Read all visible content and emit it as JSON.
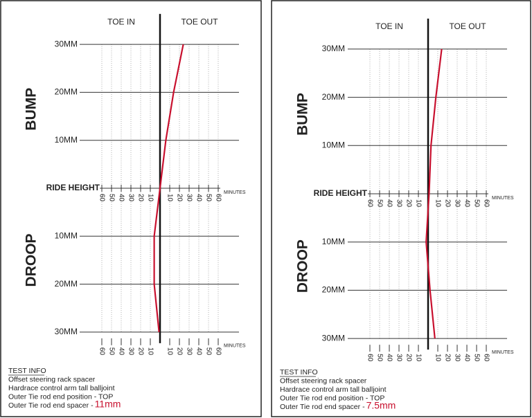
{
  "chart_data": [
    {
      "type": "line",
      "x_label_left": "TOE IN",
      "x_label_right": "TOE OUT",
      "upper_label": "BUMP",
      "lower_label": "DROOP",
      "x_unit": "MINUTES",
      "xlim": [
        -60,
        60
      ],
      "xticks": [
        {
          "value": -60,
          "label": "60"
        },
        {
          "value": -50,
          "label": "50"
        },
        {
          "value": -40,
          "label": "40"
        },
        {
          "value": -30,
          "label": "30"
        },
        {
          "value": -20,
          "label": "20"
        },
        {
          "value": -10,
          "label": "10"
        },
        10,
        20,
        30,
        40,
        50,
        60
      ],
      "ylim": [
        -30,
        30
      ],
      "yticks": [
        {
          "value": 30,
          "label": "30MM"
        },
        {
          "value": 20,
          "label": "20MM"
        },
        {
          "value": 10,
          "label": "10MM"
        },
        {
          "value": 0,
          "label": "RIDE HEIGHT"
        },
        {
          "value": -10,
          "label": "10MM"
        },
        {
          "value": -20,
          "label": "20MM"
        },
        {
          "value": -30,
          "label": "30MM"
        }
      ],
      "y": [
        30,
        20,
        10,
        0,
        -10,
        -20,
        -30
      ],
      "series": [
        {
          "color": "#c8102e",
          "values": [
            24,
            14,
            6,
            0,
            -6,
            -6,
            -1
          ]
        }
      ],
      "info_title": "TEST INFO",
      "info": [
        "Offset steering rack spacer",
        "Hardrace control arm tall balljoint",
        "Outer Tie rod end position - TOP",
        "Outer Tie rod end spacer -"
      ],
      "info_highlight": "11mm"
    },
    {
      "type": "line",
      "x_label_left": "TOE IN",
      "x_label_right": "TOE OUT",
      "upper_label": "BUMP",
      "lower_label": "DROOP",
      "x_unit": "MINUTES",
      "xlim": [
        -60,
        60
      ],
      "xticks": [
        {
          "value": -60,
          "label": "60"
        },
        {
          "value": -50,
          "label": "50"
        },
        {
          "value": -40,
          "label": "40"
        },
        {
          "value": -30,
          "label": "30"
        },
        {
          "value": -20,
          "label": "20"
        },
        {
          "value": -10,
          "label": "10"
        },
        10,
        20,
        30,
        40,
        50,
        60
      ],
      "ylim": [
        -30,
        30
      ],
      "yticks": [
        {
          "value": 30,
          "label": "30MM"
        },
        {
          "value": 20,
          "label": "20MM"
        },
        {
          "value": 10,
          "label": "10MM"
        },
        {
          "value": 0,
          "label": "RIDE HEIGHT"
        },
        {
          "value": -10,
          "label": "10MM"
        },
        {
          "value": -20,
          "label": "20MM"
        },
        {
          "value": -30,
          "label": "30MM"
        }
      ],
      "y": [
        30,
        20,
        10,
        0,
        -10,
        -20,
        -30
      ],
      "series": [
        {
          "color": "#c8102e",
          "values": [
            14,
            8,
            3,
            1,
            -2,
            2,
            7
          ]
        }
      ],
      "info_title": "TEST INFO",
      "info": [
        "Offset steering rack spacer",
        "Hardrace control arm tall balljoint",
        "Outer Tie rod end position - TOP",
        "Outer Tie rod end spacer -"
      ],
      "info_highlight": "7.5mm"
    }
  ]
}
